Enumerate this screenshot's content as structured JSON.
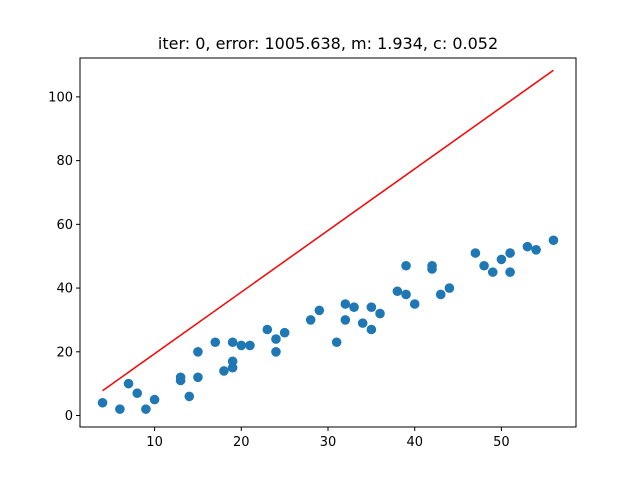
{
  "chart_data": {
    "type": "scatter",
    "title": "iter: 0, error: 1005.638, m: 1.934, c: 0.052",
    "xlabel": "",
    "ylabel": "",
    "xlim": [
      1.4,
      58.6
    ],
    "ylim": [
      -3.6,
      112.2
    ],
    "grid": false,
    "x_ticks": [
      10,
      20,
      30,
      40,
      50
    ],
    "y_ticks": [
      0,
      20,
      40,
      60,
      80,
      100
    ],
    "colors": {
      "points": "#1f77b4",
      "line": "#ff0000",
      "axes": "#000000"
    },
    "series": [
      {
        "type": "scatter",
        "points": [
          [
            4,
            4
          ],
          [
            6,
            2
          ],
          [
            7,
            10
          ],
          [
            8,
            7
          ],
          [
            9,
            2
          ],
          [
            10,
            5
          ],
          [
            13,
            11
          ],
          [
            13,
            12
          ],
          [
            14,
            6
          ],
          [
            15,
            12
          ],
          [
            15,
            20
          ],
          [
            17,
            23
          ],
          [
            18,
            14
          ],
          [
            19,
            15
          ],
          [
            19,
            17
          ],
          [
            19,
            23
          ],
          [
            20,
            22
          ],
          [
            21,
            22
          ],
          [
            23,
            27
          ],
          [
            24,
            20
          ],
          [
            24,
            24
          ],
          [
            25,
            26
          ],
          [
            28,
            30
          ],
          [
            29,
            33
          ],
          [
            31,
            23
          ],
          [
            32,
            30
          ],
          [
            32,
            35
          ],
          [
            33,
            34
          ],
          [
            34,
            29
          ],
          [
            35,
            27
          ],
          [
            35,
            34
          ],
          [
            36,
            32
          ],
          [
            38,
            39
          ],
          [
            39,
            38
          ],
          [
            39,
            47
          ],
          [
            40,
            35
          ],
          [
            42,
            46
          ],
          [
            42,
            47
          ],
          [
            43,
            38
          ],
          [
            44,
            40
          ],
          [
            47,
            51
          ],
          [
            48,
            47
          ],
          [
            49,
            45
          ],
          [
            50,
            49
          ],
          [
            51,
            45
          ],
          [
            51,
            51
          ],
          [
            53,
            53
          ],
          [
            54,
            52
          ],
          [
            56,
            55
          ]
        ]
      },
      {
        "type": "line",
        "x": [
          4,
          56
        ],
        "y": [
          7.79,
          108.36
        ]
      }
    ]
  }
}
